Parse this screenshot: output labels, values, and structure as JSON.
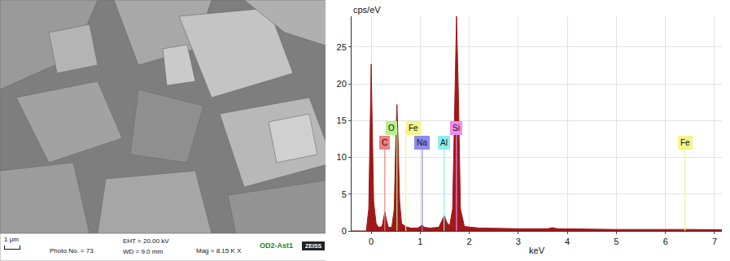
{
  "image_panel": {
    "scale_bar": "1 μm",
    "photo_no": "Photo No. = 73",
    "eht": "EHT = 20.00 kV",
    "wd": "WD = 9.0 mm",
    "mag": "Mag = 8.15 K X",
    "sample": "OD2-Ast1",
    "logo": "ZEISS"
  },
  "chart_data": {
    "type": "area",
    "x_label": "keV",
    "y_label": "cps/eV",
    "color": "#a01818",
    "grid": true,
    "x": [
      -0.4,
      -0.1,
      -0.05,
      -0.02,
      0,
      0.02,
      0.05,
      0.1,
      0.15,
      0.22,
      0.25,
      0.28,
      0.31,
      0.35,
      0.42,
      0.47,
      0.5,
      0.525,
      0.55,
      0.58,
      0.62,
      0.7,
      0.8,
      0.95,
      1.0,
      1.04,
      1.08,
      1.2,
      1.38,
      1.44,
      1.49,
      1.54,
      1.6,
      1.66,
      1.7,
      1.74,
      1.78,
      1.82,
      1.9,
      2.2,
      3.0,
      3.6,
      3.69,
      3.8,
      5.0,
      6.3,
      6.4,
      6.5,
      7.15
    ],
    "values": [
      0,
      0,
      3,
      14,
      22.7,
      15,
      4,
      1.0,
      0.5,
      0.6,
      1.5,
      2.6,
      1.5,
      0.5,
      0.5,
      3,
      12,
      17.2,
      12,
      4,
      1.0,
      0.6,
      0.4,
      0.4,
      0.6,
      0.8,
      0.5,
      0.4,
      0.5,
      1.3,
      2.1,
      1.2,
      0.7,
      3,
      18,
      29.2,
      18,
      3,
      0.6,
      0.4,
      0.3,
      0.3,
      0.45,
      0.3,
      0.2,
      0.2,
      0.25,
      0.2,
      0.15
    ],
    "xlim": [
      -0.4,
      7.15
    ],
    "xticks": [
      0,
      1,
      2,
      3,
      4,
      5,
      6,
      7
    ],
    "ylim": [
      0,
      29.2
    ],
    "yticks": [
      0,
      5,
      10,
      15,
      20,
      25
    ],
    "annotations": [
      {
        "text": "C",
        "x": 0.277,
        "y": 12,
        "color": "#f08080"
      },
      {
        "text": "O",
        "x": 0.525,
        "y": 14,
        "color": "#b8f08c"
      },
      {
        "text": "Fe",
        "x": 0.705,
        "y": 14,
        "color": "#f5f58c"
      },
      {
        "text": "Na",
        "x": 1.041,
        "y": 12,
        "color": "#8c8cf0"
      },
      {
        "text": "Al",
        "x": 1.486,
        "y": 12,
        "color": "#8cf0f0"
      },
      {
        "text": "Si",
        "x": 1.739,
        "y": 14,
        "color": "#f08cf0"
      },
      {
        "text": "Fe",
        "x": 6.398,
        "y": 12,
        "color": "#f5f58c"
      }
    ]
  }
}
